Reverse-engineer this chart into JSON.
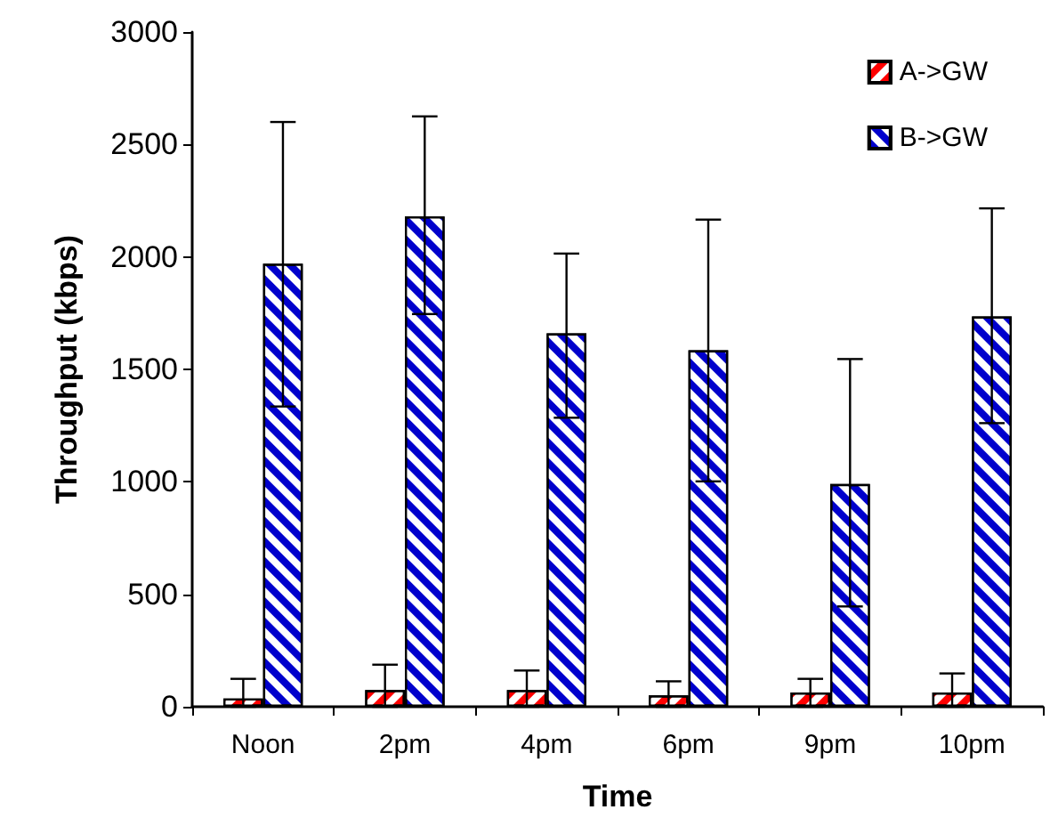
{
  "chart_data": {
    "type": "bar",
    "xlabel": "Time",
    "ylabel": "Throughput (kbps)",
    "categories": [
      "Noon",
      "2pm",
      "4pm",
      "6pm",
      "9pm",
      "10pm"
    ],
    "series": [
      {
        "name": "A->GW",
        "color": "#ff0000",
        "values": [
          37,
          74,
          74,
          50,
          63,
          63
        ],
        "errors": [
          [
            0,
            124
          ],
          [
            0,
            187
          ],
          [
            0,
            161
          ],
          [
            0,
            113
          ],
          [
            0,
            124
          ],
          [
            0,
            148
          ]
        ]
      },
      {
        "name": "B->GW",
        "color": "#0000cc",
        "values": [
          1970,
          2180,
          1660,
          1585,
          990,
          1735
        ],
        "errors": [
          [
            1335,
            2600
          ],
          [
            1746,
            2625
          ],
          [
            1285,
            2015
          ],
          [
            1002,
            2166
          ],
          [
            446,
            1546
          ],
          [
            1261,
            2216
          ]
        ]
      }
    ],
    "ylim": [
      0,
      3000
    ],
    "yticks": [
      0,
      500,
      1000,
      1500,
      2000,
      2500,
      3000
    ],
    "grid": false,
    "legend": "top right"
  }
}
